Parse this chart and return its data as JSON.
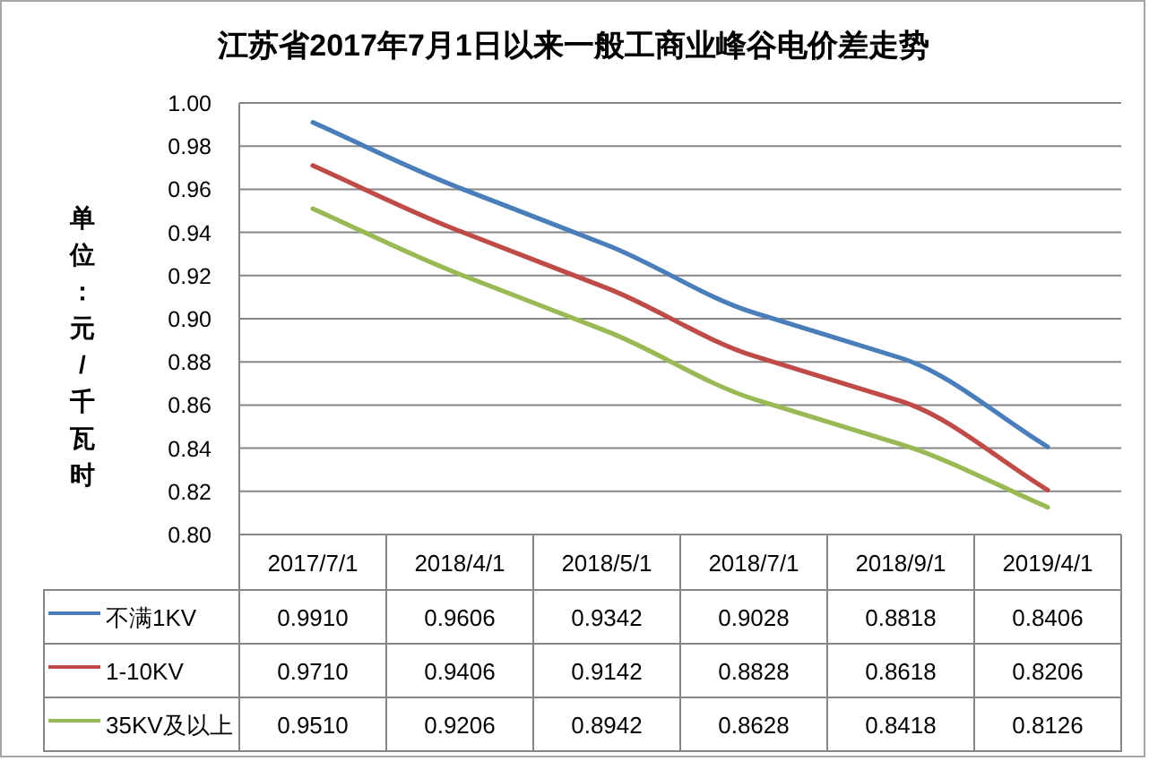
{
  "chart_data": {
    "type": "line",
    "title": "江苏省2017年7月1日以来一般工商业峰谷电价差走势",
    "ylabel": "单位：元/千瓦时",
    "categories": [
      "2017/7/1",
      "2018/4/1",
      "2018/5/1",
      "2018/7/1",
      "2018/9/1",
      "2019/4/1"
    ],
    "series": [
      {
        "name": "不满1KV",
        "color": "#4a7ebb",
        "values": [
          0.991,
          0.9606,
          0.9342,
          0.9028,
          0.8818,
          0.8406
        ],
        "value_labels": [
          "0.9910",
          "0.9606",
          "0.9342",
          "0.9028",
          "0.8818",
          "0.8406"
        ]
      },
      {
        "name": "1-10KV",
        "color": "#be4b48",
        "values": [
          0.971,
          0.9406,
          0.9142,
          0.8828,
          0.8618,
          0.8206
        ],
        "value_labels": [
          "0.9710",
          "0.9406",
          "0.9142",
          "0.8828",
          "0.8618",
          "0.8206"
        ]
      },
      {
        "name": "35KV及以上",
        "color": "#98b954",
        "values": [
          0.951,
          0.9206,
          0.8942,
          0.8628,
          0.8418,
          0.8126
        ],
        "value_labels": [
          "0.9510",
          "0.9206",
          "0.8942",
          "0.8628",
          "0.8418",
          "0.8126"
        ]
      }
    ],
    "ylim": [
      0.8,
      1.0
    ],
    "yticks": [
      {
        "value": 0.8,
        "label": "0.80"
      },
      0.82,
      0.84,
      0.86,
      0.88,
      {
        "value": 0.9,
        "label": "0.90"
      },
      0.92,
      0.94,
      0.96,
      0.98,
      {
        "value": 1.0,
        "label": "1.00"
      }
    ],
    "grid": "y",
    "legend": "bottom",
    "line_style": "solid"
  }
}
